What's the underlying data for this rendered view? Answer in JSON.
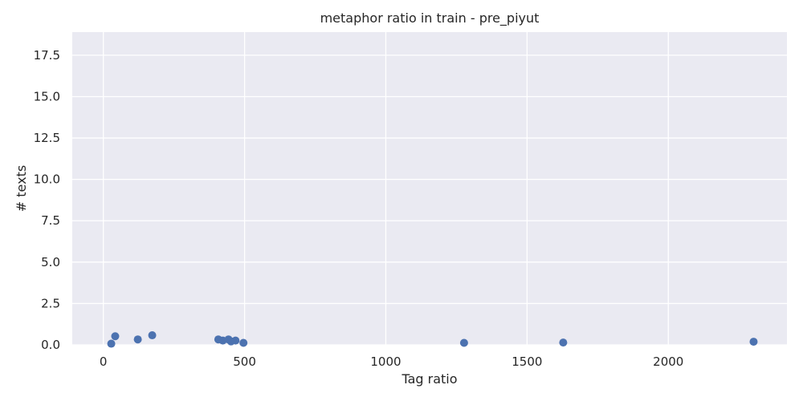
{
  "chart_data": {
    "type": "scatter",
    "title": "metaphor ratio in train - pre_piyut",
    "xlabel": "Tag ratio",
    "ylabel": "# texts",
    "xlim": [
      -110,
      2420
    ],
    "ylim": [
      0,
      18.9
    ],
    "xticks": [
      0,
      500,
      1000,
      1500,
      2000
    ],
    "xtick_labels": [
      "0",
      "500",
      "1000",
      "1500",
      "2000"
    ],
    "yticks": [
      0,
      2.5,
      5,
      7.5,
      10,
      12.5,
      15,
      17.5
    ],
    "ytick_labels": [
      "0.0",
      "2.5",
      "5.0",
      "7.5",
      "10.0",
      "12.5",
      "15.0",
      "17.5"
    ],
    "grid": true,
    "series": [
      {
        "color": "#4c72b0",
        "points": [
          {
            "x": 28,
            "y": 0.07
          },
          {
            "x": 42,
            "y": 0.52
          },
          {
            "x": 122,
            "y": 0.33
          },
          {
            "x": 173,
            "y": 0.58
          },
          {
            "x": 407,
            "y": 0.33
          },
          {
            "x": 423,
            "y": 0.26
          },
          {
            "x": 443,
            "y": 0.33
          },
          {
            "x": 452,
            "y": 0.21
          },
          {
            "x": 468,
            "y": 0.26
          },
          {
            "x": 496,
            "y": 0.12
          },
          {
            "x": 1277,
            "y": 0.12
          },
          {
            "x": 1628,
            "y": 0.14
          },
          {
            "x": 2302,
            "y": 0.19
          }
        ]
      }
    ]
  },
  "style": {
    "plot_bg": "#eaeaf2",
    "grid_color": "#ffffff",
    "marker_color": "#4c72b0",
    "text_color": "#262626"
  }
}
